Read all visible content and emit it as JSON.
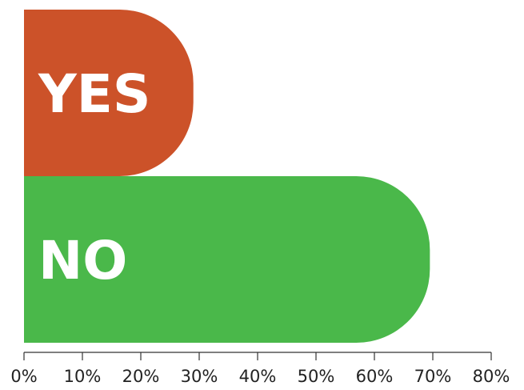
{
  "chart_data": {
    "type": "bar",
    "orientation": "horizontal",
    "title": "",
    "xlabel": "",
    "ylabel": "",
    "categories": [
      "YES",
      "NO"
    ],
    "values": [
      29,
      69.5
    ],
    "colors": [
      "#cc5229",
      "#4ab84a"
    ],
    "xlim": [
      0,
      80
    ],
    "xticks": [
      0,
      10,
      20,
      30,
      40,
      50,
      60,
      70,
      80
    ],
    "xtick_labels": [
      "0%",
      "10%",
      "20%",
      "30%",
      "40%",
      "50%",
      "60%",
      "70%",
      "80%"
    ],
    "grid": false,
    "legend": "none"
  }
}
